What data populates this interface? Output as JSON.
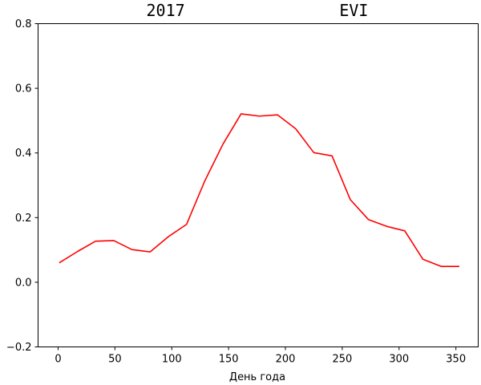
{
  "title": "2017                EVI",
  "chart_data": {
    "type": "line",
    "title": "2017                EVI",
    "xlabel": "День года",
    "ylabel": "",
    "xlim": [
      -17.6,
      369.6
    ],
    "ylim": [
      -0.2,
      0.8
    ],
    "xticks": [
      0,
      50,
      100,
      150,
      200,
      250,
      300,
      350
    ],
    "yticks": [
      -0.2,
      0.0,
      0.2,
      0.4,
      0.6,
      0.8
    ],
    "xtick_labels": [
      "0",
      "50",
      "100",
      "150",
      "200",
      "250",
      "300",
      "350"
    ],
    "ytick_labels": [
      "−0.2",
      "0.0",
      "0.2",
      "0.4",
      "0.6",
      "0.8"
    ],
    "grid": false,
    "series": [
      {
        "color": "#ff0000",
        "x": [
          1,
          17,
          33,
          49,
          65,
          81,
          97,
          113,
          129,
          145,
          161,
          177,
          193,
          209,
          225,
          241,
          257,
          273,
          289,
          305,
          321,
          337,
          353
        ],
        "y": [
          0.06,
          0.095,
          0.127,
          0.129,
          0.101,
          0.094,
          0.141,
          0.179,
          0.313,
          0.427,
          0.521,
          0.514,
          0.518,
          0.475,
          0.401,
          0.391,
          0.256,
          0.194,
          0.173,
          0.159,
          0.071,
          0.049,
          0.049
        ]
      }
    ]
  }
}
